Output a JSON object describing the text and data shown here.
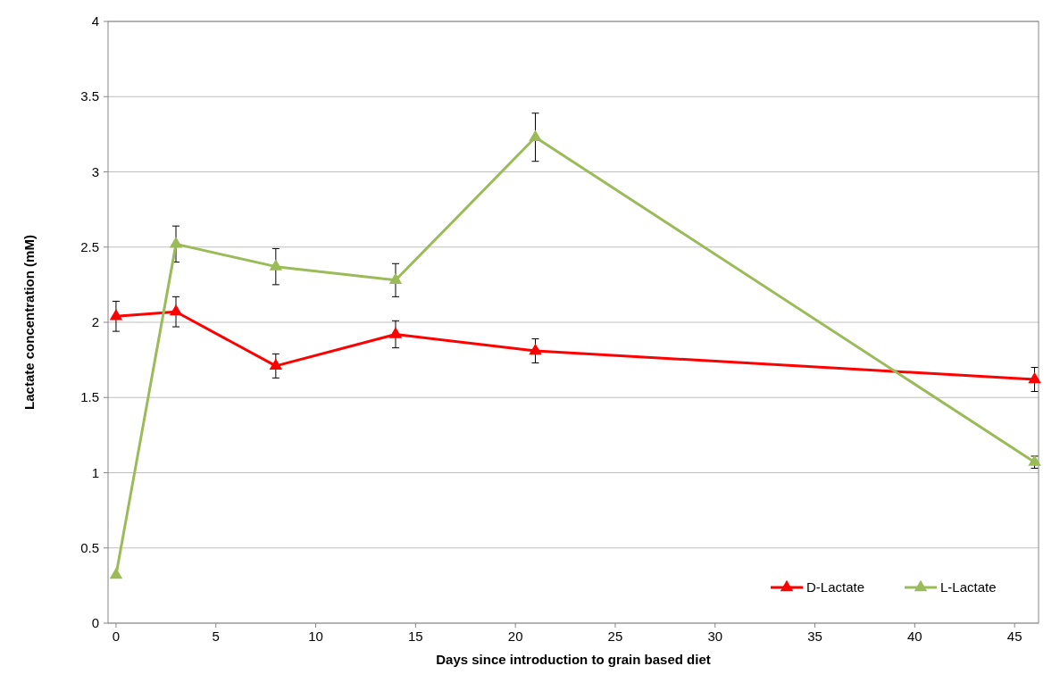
{
  "chart_data": {
    "type": "line",
    "xlabel": "Days since introduction to grain based diet",
    "ylabel": "Lactate concentration (mM)",
    "x": [
      0,
      3,
      8,
      14,
      21,
      46
    ],
    "series": [
      {
        "name": "D-Lactate",
        "color": "#ff0000",
        "values": [
          2.04,
          2.07,
          1.71,
          1.92,
          1.81,
          1.62
        ],
        "errors": [
          0.1,
          0.1,
          0.08,
          0.09,
          0.08,
          0.08
        ]
      },
      {
        "name": "L-Lactate",
        "color": "#9bbb59",
        "values": [
          0.32,
          2.52,
          2.37,
          2.28,
          3.23,
          1.07
        ],
        "errors": [
          null,
          0.12,
          0.12,
          0.11,
          0.16,
          0.04
        ]
      }
    ],
    "xlim": [
      -0.4,
      46.2
    ],
    "xticks": [
      0,
      5,
      10,
      15,
      20,
      25,
      30,
      35,
      40,
      45
    ],
    "ylim": [
      0,
      4
    ],
    "yticks": [
      0,
      0.5,
      1,
      1.5,
      2,
      2.5,
      3,
      3.5,
      4
    ],
    "grid": "y",
    "legend": "bottom right",
    "marker": "triangle",
    "line_style": "solid"
  }
}
